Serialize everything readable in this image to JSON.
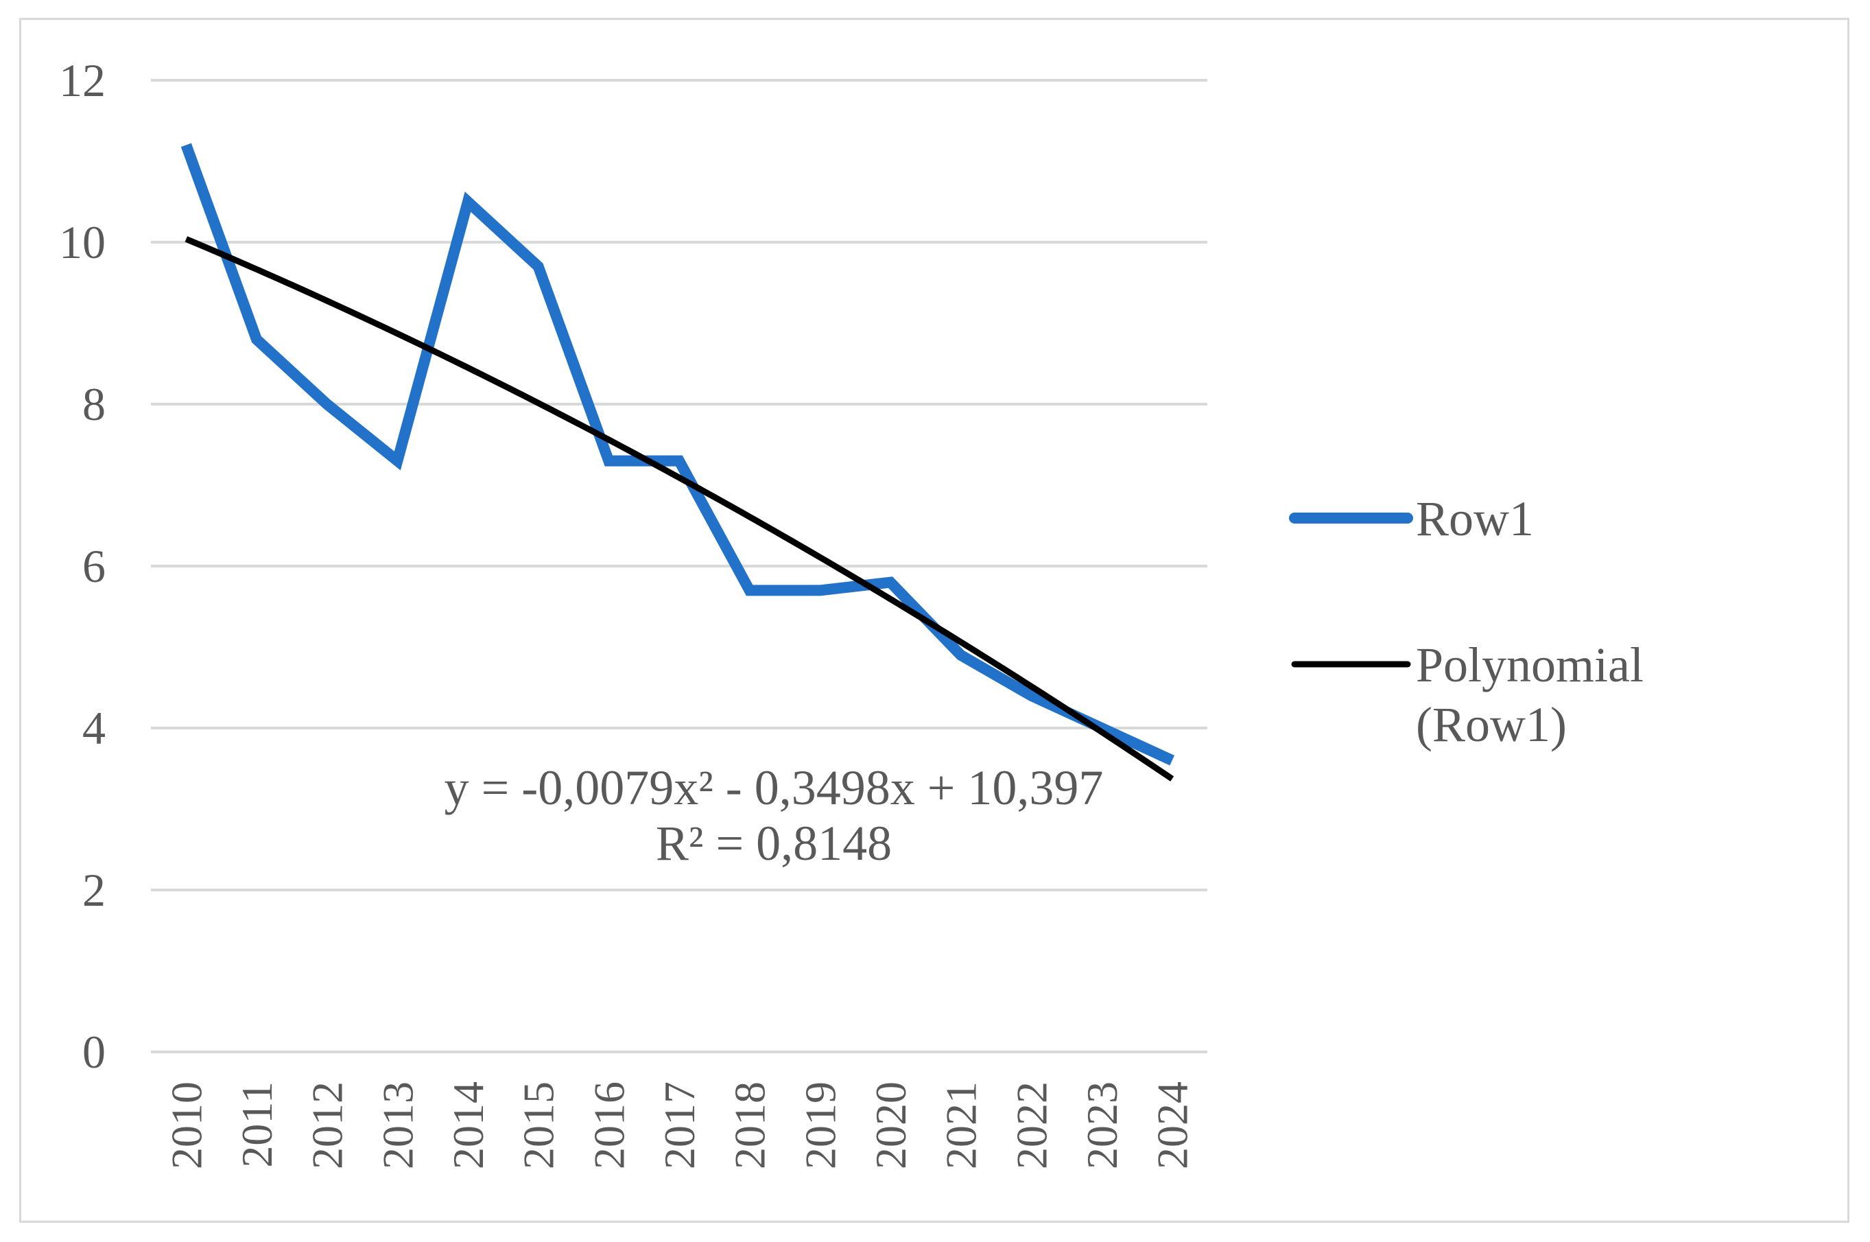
{
  "chart_data": {
    "type": "line",
    "title": "",
    "xlabel": "",
    "ylabel": "",
    "categories": [
      "2010",
      "2011",
      "2012",
      "2013",
      "2014",
      "2015",
      "2016",
      "2017",
      "2018",
      "2019",
      "2020",
      "2021",
      "2022",
      "2023",
      "2024"
    ],
    "ylim": [
      0,
      12
    ],
    "yticks": [
      "0",
      "2",
      "4",
      "6",
      "8",
      "10",
      "12"
    ],
    "grid": true,
    "series": [
      {
        "name": "Row1",
        "color": "#2172c8",
        "values": [
          11.2,
          8.8,
          8.0,
          7.3,
          10.5,
          9.7,
          7.3,
          7.3,
          5.7,
          5.7,
          5.8,
          4.9,
          4.4,
          4.0,
          3.6
        ]
      }
    ],
    "trendline": {
      "name": "Polynomial (Row1)",
      "name_lines": [
        "Polynomial",
        "(Row1)"
      ],
      "color": "#000000",
      "type": "polynomial",
      "coefficients": {
        "a": -0.0079,
        "b": -0.3498,
        "c": 10.397
      },
      "equation": "y = -0,0079x² - 0,3498x + 10,397",
      "r_squared": "R² = 0,8148"
    },
    "legend_position": "right"
  }
}
